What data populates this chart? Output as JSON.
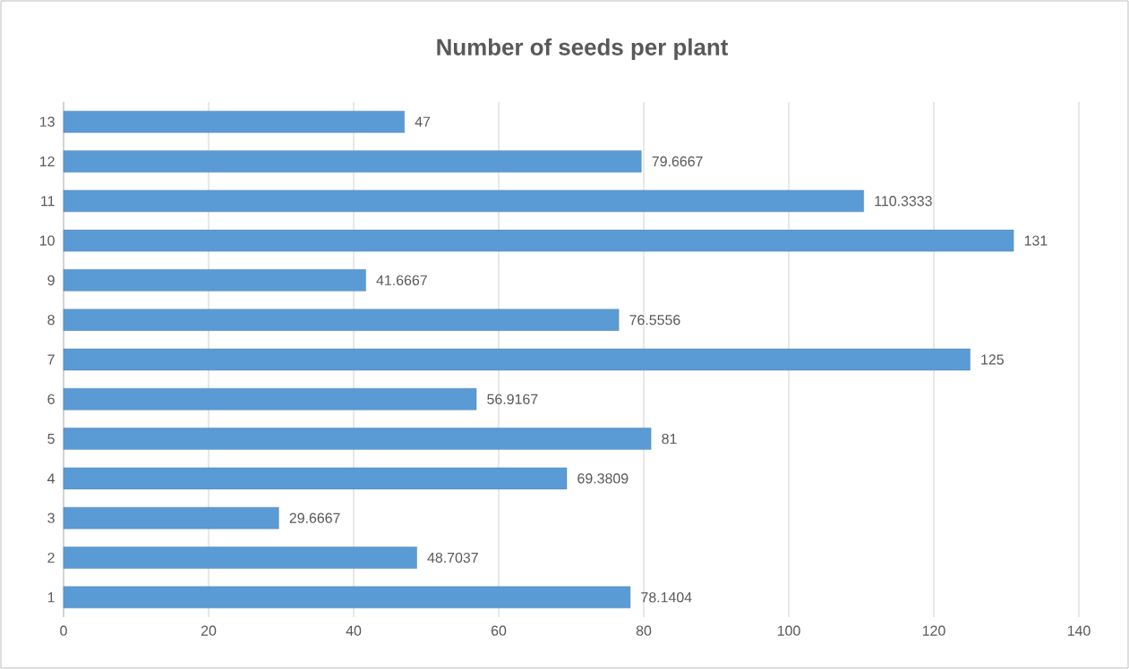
{
  "chart_data": {
    "type": "bar",
    "orientation": "horizontal",
    "title": "Number of seeds per plant",
    "categories": [
      "13",
      "12",
      "11",
      "10",
      "9",
      "8",
      "7",
      "6",
      "5",
      "4",
      "3",
      "2",
      "1"
    ],
    "values": [
      47,
      79.6667,
      110.3333,
      131,
      41.6667,
      76.5556,
      125,
      56.9167,
      81,
      69.3809,
      29.6667,
      48.7037,
      78.1404
    ],
    "color": "#5b9bd5",
    "xlim": [
      0,
      140
    ],
    "xticks": [
      0,
      20,
      40,
      60,
      80,
      100,
      120,
      140
    ],
    "grid": "x",
    "data_labels": true
  }
}
